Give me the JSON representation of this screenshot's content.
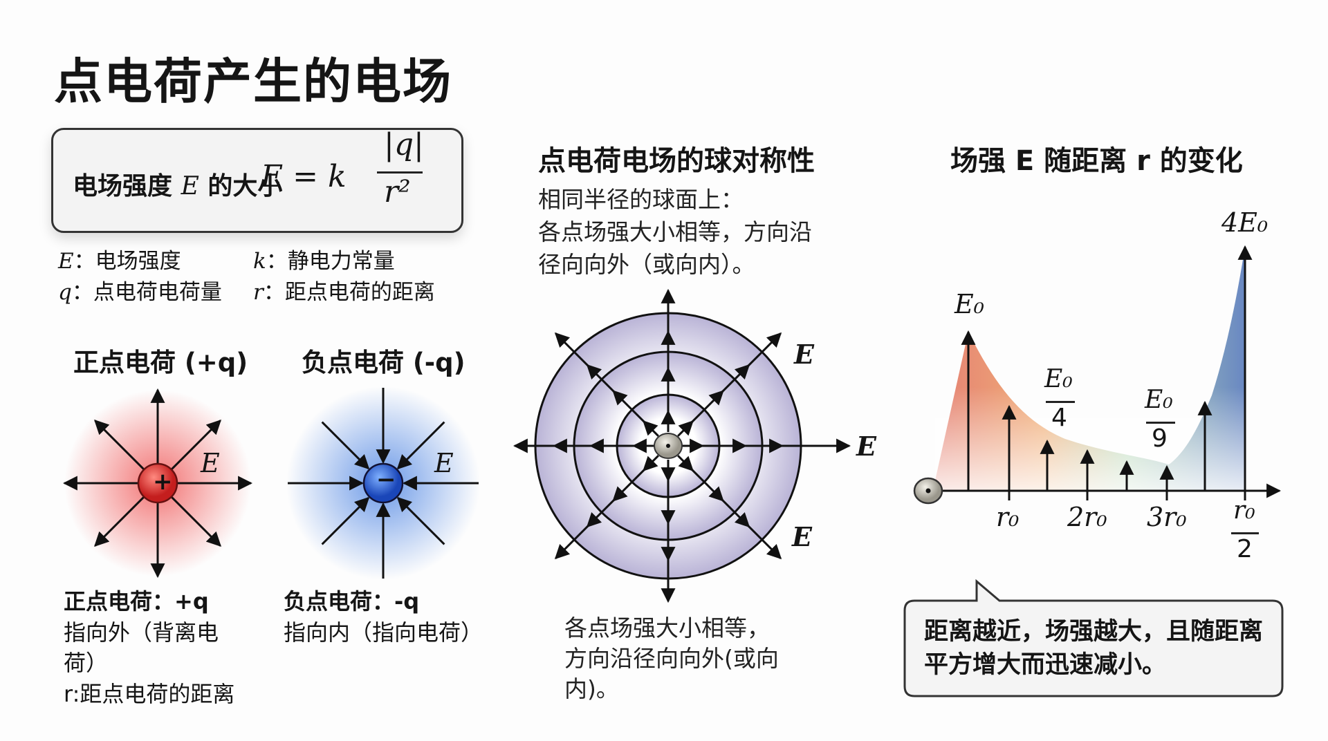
{
  "title": "点电荷产生的电场",
  "formula": {
    "label_pre": "电场强度",
    "label_var": "E",
    "label_post": "的大小",
    "lhs": "E = k",
    "numerator": "|q|",
    "denominator": "r²"
  },
  "legend": [
    {
      "symbol": "E",
      "text": "：电场强度"
    },
    {
      "symbol": "k",
      "text": "：静电力常量"
    },
    {
      "symbol": "q",
      "text": "：点电荷电荷量"
    },
    {
      "symbol": "r",
      "text": "：距点电荷的距离"
    }
  ],
  "positive": {
    "heading": "正点电荷 (+q)",
    "sign": "+",
    "field_label": "E",
    "desc_title": "正点电荷：+q",
    "desc_lines": [
      "指向外（背离电",
      "荷）",
      "r:距点电荷的距离"
    ],
    "color": "#d83a3a"
  },
  "negative": {
    "heading": "负点电荷 (-q)",
    "sign": "−",
    "field_label": "E",
    "desc_title": "负点电荷：-q",
    "desc_lines": [
      "指向内（指向电荷）"
    ],
    "color": "#2b5fd0"
  },
  "symmetry": {
    "heading": "点电荷电场的球对称性",
    "lines": [
      "相同半径的球面上：",
      "各点场强大小相等，方向沿",
      "径向向外（或向内）。"
    ],
    "field_labels": [
      "E",
      "E",
      "E"
    ],
    "caption": [
      "各点场强大小相等，",
      "方向沿径向向外(或向",
      "内)。"
    ],
    "shell_color": "#b9b3d6"
  },
  "graph": {
    "heading": "场强 E 随距离 r 的变化",
    "value_labels": {
      "peak": "E₀",
      "quarter_num": "E₀",
      "quarter_den": "4",
      "ninth_num": "E₀",
      "ninth_den": "9",
      "max": "4E₀"
    },
    "tick_labels": [
      "r₀",
      "2r₀",
      "3r₀"
    ],
    "last_tick": {
      "num": "r₀",
      "den": "2"
    },
    "gradient_colors": [
      "#e06a5a",
      "#eea060",
      "#a8d0a8",
      "#4f73b8"
    ]
  },
  "callout": "距离越近，场强越大，且随距离平方增大而迅速减小。"
}
